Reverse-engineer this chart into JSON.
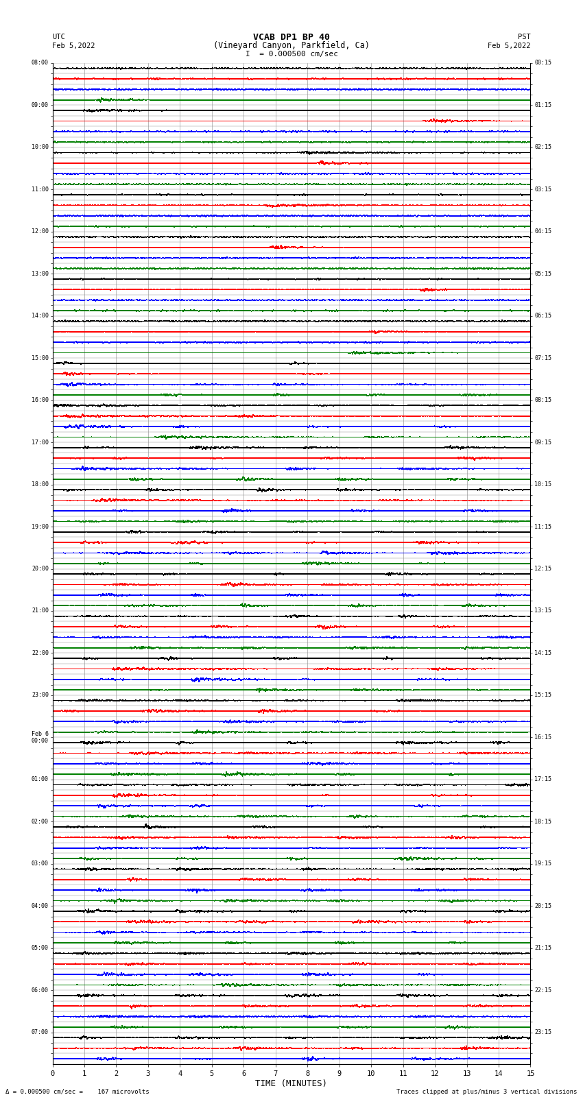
{
  "title_line1": "VCAB DP1 BP 40",
  "title_line2": "(Vineyard Canyon, Parkfield, Ca)",
  "scale_label": "I  = 0.000500 cm/sec",
  "left_label_top": "UTC",
  "left_label_date": "Feb 5,2022",
  "right_label_top": "PST",
  "right_label_date": "Feb 5,2022",
  "xlabel": "TIME (MINUTES)",
  "bottom_left_label": "Δ",
  "bottom_left_text": "= 0.000500 cm/sec =    167 microvolts",
  "bottom_right_text": "Traces clipped at plus/minus 3 vertical divisions",
  "left_times": [
    "08:00",
    "",
    "",
    "",
    "09:00",
    "",
    "",
    "",
    "10:00",
    "",
    "",
    "",
    "11:00",
    "",
    "",
    "",
    "12:00",
    "",
    "",
    "",
    "13:00",
    "",
    "",
    "",
    "14:00",
    "",
    "",
    "",
    "15:00",
    "",
    "",
    "",
    "16:00",
    "",
    "",
    "",
    "17:00",
    "",
    "",
    "",
    "18:00",
    "",
    "",
    "",
    "19:00",
    "",
    "",
    "",
    "20:00",
    "",
    "",
    "",
    "21:00",
    "",
    "",
    "",
    "22:00",
    "",
    "",
    "",
    "23:00",
    "",
    "",
    "",
    "Feb 6\n00:00",
    "",
    "",
    "",
    "01:00",
    "",
    "",
    "",
    "02:00",
    "",
    "",
    "",
    "03:00",
    "",
    "",
    "",
    "04:00",
    "",
    "",
    "",
    "05:00",
    "",
    "",
    "",
    "06:00",
    "",
    "",
    "",
    "07:00",
    "",
    ""
  ],
  "right_times": [
    "00:15",
    "",
    "",
    "",
    "01:15",
    "",
    "",
    "",
    "02:15",
    "",
    "",
    "",
    "03:15",
    "",
    "",
    "",
    "04:15",
    "",
    "",
    "",
    "05:15",
    "",
    "",
    "",
    "06:15",
    "",
    "",
    "",
    "07:15",
    "",
    "",
    "",
    "08:15",
    "",
    "",
    "",
    "09:15",
    "",
    "",
    "",
    "10:15",
    "",
    "",
    "",
    "11:15",
    "",
    "",
    "",
    "12:15",
    "",
    "",
    "",
    "13:15",
    "",
    "",
    "",
    "14:15",
    "",
    "",
    "",
    "15:15",
    "",
    "",
    "",
    "16:15",
    "",
    "",
    "",
    "17:15",
    "",
    "",
    "",
    "18:15",
    "",
    "",
    "",
    "19:15",
    "",
    "",
    "",
    "20:15",
    "",
    "",
    "",
    "21:15",
    "",
    "",
    "",
    "22:15",
    "",
    "",
    "",
    "23:15",
    "",
    ""
  ],
  "colors": [
    "black",
    "red",
    "blue",
    "green"
  ],
  "n_rows": 95,
  "x_min": 0,
  "x_max": 15,
  "x_ticks": [
    0,
    1,
    2,
    3,
    4,
    5,
    6,
    7,
    8,
    9,
    10,
    11,
    12,
    13,
    14,
    15
  ]
}
